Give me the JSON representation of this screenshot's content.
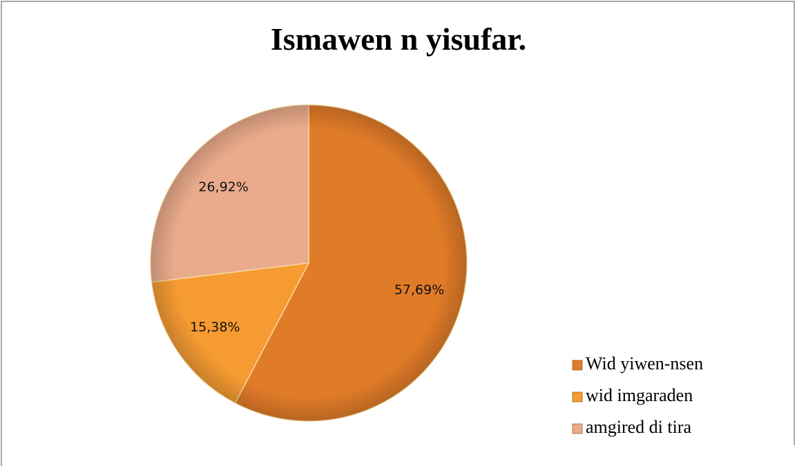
{
  "chart_data": {
    "type": "pie",
    "title": "Ismawen n yisufar.",
    "categories": [
      "Wid yiwen-nsen",
      "wid imgaraden",
      "amgired di tira"
    ],
    "values": [
      57.69,
      15.38,
      26.92
    ],
    "value_labels": [
      "57,69%",
      "15,38%",
      "26,92%"
    ],
    "colors": [
      "#e07b28",
      "#f59b32",
      "#eaab8c"
    ],
    "legend": "right"
  }
}
